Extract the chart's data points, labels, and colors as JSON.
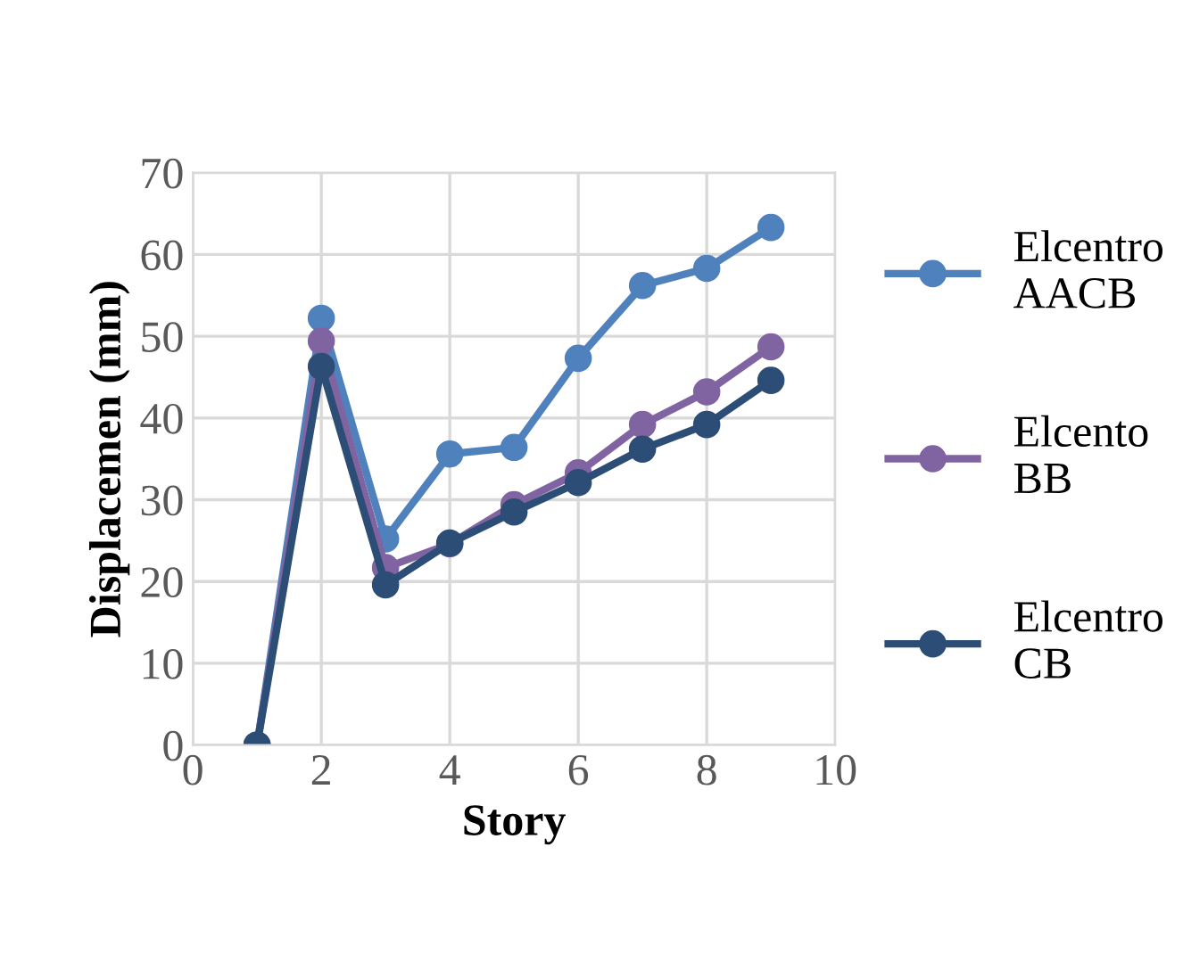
{
  "chart_data": {
    "type": "line",
    "xlabel": "Story",
    "ylabel": "Displacemen (mm)",
    "xlim": [
      0,
      10
    ],
    "xticks": [
      0,
      2,
      4,
      6,
      8,
      10
    ],
    "ylim": [
      0,
      70
    ],
    "yticks": [
      0,
      10,
      20,
      30,
      40,
      50,
      60,
      70
    ],
    "grid": true,
    "legend": "right",
    "marker": "circle",
    "line_style": "solid",
    "x": [
      1,
      2,
      3,
      4,
      5,
      6,
      7,
      8,
      9
    ],
    "series": [
      {
        "name": "Elcentro\nAACB",
        "color": "#4f81bd",
        "values": [
          0,
          52.2,
          25.2,
          35.6,
          36.4,
          47.3,
          56.2,
          58.3,
          63.3
        ]
      },
      {
        "name": "Elcento\nBB",
        "color": "#8064a2",
        "values": [
          0,
          49.4,
          21.7,
          24.6,
          29.4,
          33.3,
          39.2,
          43.2,
          48.7
        ]
      },
      {
        "name": "Elcentro\nCB",
        "color": "#2c4d75",
        "values": [
          0,
          46.3,
          19.6,
          24.7,
          28.5,
          32.1,
          36.2,
          39.2,
          44.6
        ]
      }
    ]
  }
}
